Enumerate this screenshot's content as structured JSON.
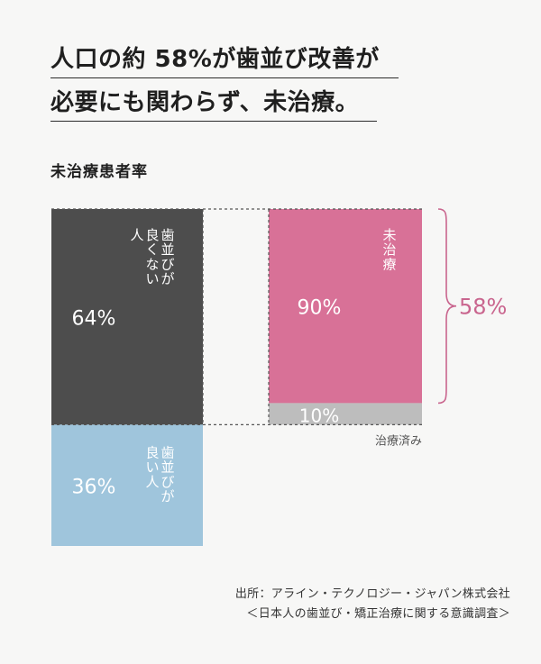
{
  "headline": {
    "line1": "人口の約 58%が歯並び改善が",
    "line2": "必要にも関わらず、未治療。"
  },
  "subtitle": "未治療患者率",
  "chart_data": [
    {
      "type": "bar",
      "stacked": true,
      "unit": "%",
      "segments": [
        {
          "label": "歯並びが良くない人",
          "value": 64,
          "display": "64%",
          "color": "#4d4d4d"
        },
        {
          "label": "歯並びが良い人",
          "value": 36,
          "display": "36%",
          "color": "#9fc5dc"
        }
      ]
    },
    {
      "type": "bar",
      "stacked": true,
      "unit": "%",
      "segments": [
        {
          "label": "未治療",
          "value": 90,
          "display": "90%",
          "color": "#d87197"
        },
        {
          "label": "治療済み",
          "value": 10,
          "display": "10%",
          "color": "#bdbdbd"
        }
      ],
      "bracket": {
        "value": "58%",
        "color": "#c9658e"
      }
    }
  ],
  "source": {
    "line1": "出所：アライン・テクノロジー・ジャパン株式会社",
    "line2": "＜日本人の歯並び・矯正治療に関する意識調査＞"
  }
}
